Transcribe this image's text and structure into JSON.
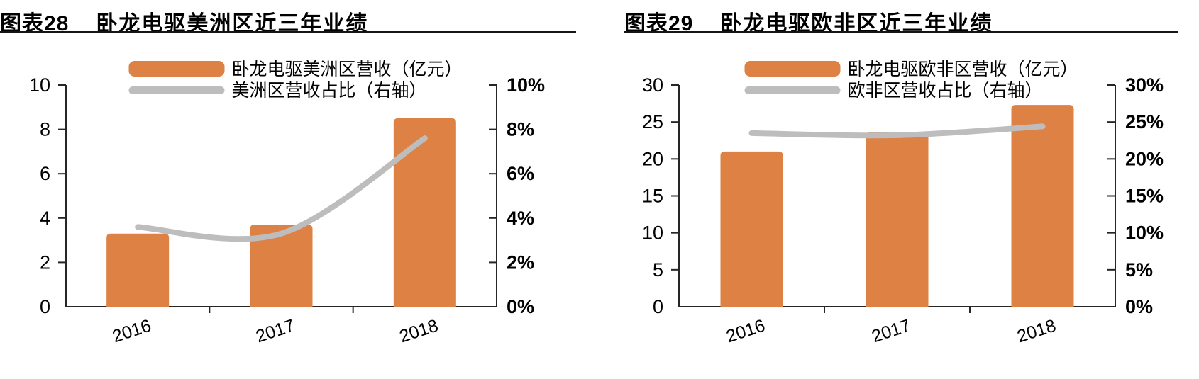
{
  "page": {
    "background": "#ffffff"
  },
  "colors": {
    "bar_orange": "#DD8145",
    "line_gray": "#BDBDBD",
    "axis": "#262626",
    "text": "#000000",
    "rule": "#141414"
  },
  "chart_data": [
    {
      "figure_label": "图表28",
      "title": "卧龙电驱美洲区近三年业绩",
      "type": "bar+line",
      "categories": [
        "2016",
        "2017",
        "2018"
      ],
      "series": [
        {
          "name": "卧龙电驱美洲区营收（亿元）",
          "type": "bar",
          "axis": "left",
          "color": "#DD8145",
          "values": [
            3.3,
            3.7,
            8.5
          ]
        },
        {
          "name": "美洲区营收占比（右轴）",
          "type": "line",
          "axis": "right",
          "color": "#BDBDBD",
          "values": [
            3.6,
            3.3,
            7.6
          ]
        }
      ],
      "left_axis": {
        "min": 0,
        "max": 10,
        "step": 2,
        "labels": [
          "0",
          "2",
          "4",
          "6",
          "8",
          "10"
        ]
      },
      "right_axis": {
        "min": 0,
        "max": 10,
        "step": 2,
        "labels": [
          "0%",
          "2%",
          "4%",
          "6%",
          "8%",
          "10%"
        ]
      },
      "legend_position": "top-center",
      "grid": false
    },
    {
      "figure_label": "图表29",
      "title": "卧龙电驱欧非区近三年业绩",
      "type": "bar+line",
      "categories": [
        "2016",
        "2017",
        "2018"
      ],
      "series": [
        {
          "name": "卧龙电驱欧非区营收（亿元）",
          "type": "bar",
          "axis": "left",
          "color": "#DD8145",
          "values": [
            21.0,
            23.6,
            27.3
          ]
        },
        {
          "name": "欧非区营收占比（右轴）",
          "type": "line",
          "axis": "right",
          "color": "#BDBDBD",
          "values": [
            23.5,
            23.2,
            24.4
          ]
        }
      ],
      "left_axis": {
        "min": 0,
        "max": 30,
        "step": 5,
        "labels": [
          "0",
          "5",
          "10",
          "15",
          "20",
          "25",
          "30"
        ]
      },
      "right_axis": {
        "min": 0,
        "max": 30,
        "step": 5,
        "labels": [
          "0%",
          "5%",
          "10%",
          "15%",
          "20%",
          "25%",
          "30%"
        ]
      },
      "legend_position": "top-center",
      "grid": false
    }
  ]
}
